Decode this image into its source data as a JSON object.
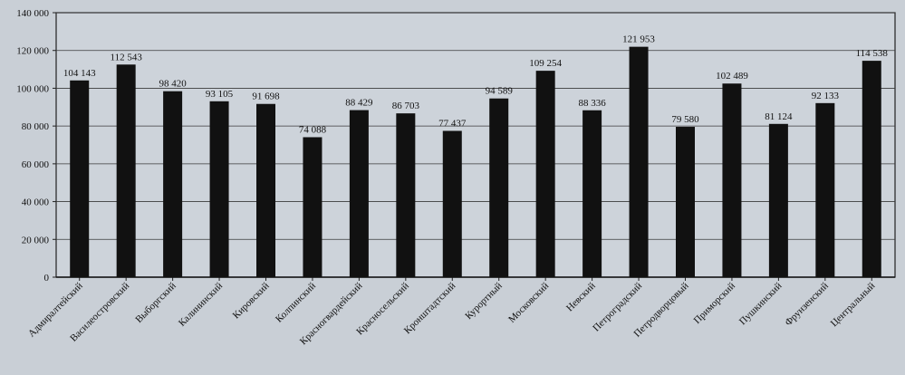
{
  "colors": {
    "background": "#c9cfd6",
    "plot_background": "#cdd3da",
    "bar": "#111111",
    "grid": "#3a3a3a"
  },
  "chart_data": {
    "type": "bar",
    "title": "",
    "xlabel": "",
    "ylabel": "",
    "ylim": [
      0,
      140000
    ],
    "yticks": [
      0,
      20000,
      40000,
      60000,
      80000,
      100000,
      120000,
      140000
    ],
    "ytick_labels": [
      "0",
      "20 000",
      "40 000",
      "60 000",
      "80 000",
      "100 000",
      "120 000",
      "140 000"
    ],
    "grid": true,
    "categories": [
      "Адмиралтейский",
      "Василеостровский",
      "Выборгский",
      "Калининский",
      "Кировский",
      "Колпинский",
      "Красногвардейский",
      "Красносельский",
      "Кронштадтский",
      "Курортный",
      "Московский",
      "Невский",
      "Петроградский",
      "Петродворцовый",
      "Приморский",
      "Пушкинский",
      "Фрунзенский",
      "Центральный"
    ],
    "values": [
      104143,
      112543,
      98420,
      93105,
      91698,
      74088,
      88429,
      86703,
      77437,
      94589,
      109254,
      88336,
      121953,
      79580,
      102489,
      81124,
      92133,
      114538
    ],
    "value_labels": [
      "104 143",
      "112 543",
      "98 420",
      "93 105",
      "91 698",
      "74 088",
      "88 429",
      "86 703",
      "77 437",
      "94 589",
      "109 254",
      "88 336",
      "121 953",
      "79 580",
      "102 489",
      "81 124",
      "92 133",
      "114 538"
    ]
  }
}
